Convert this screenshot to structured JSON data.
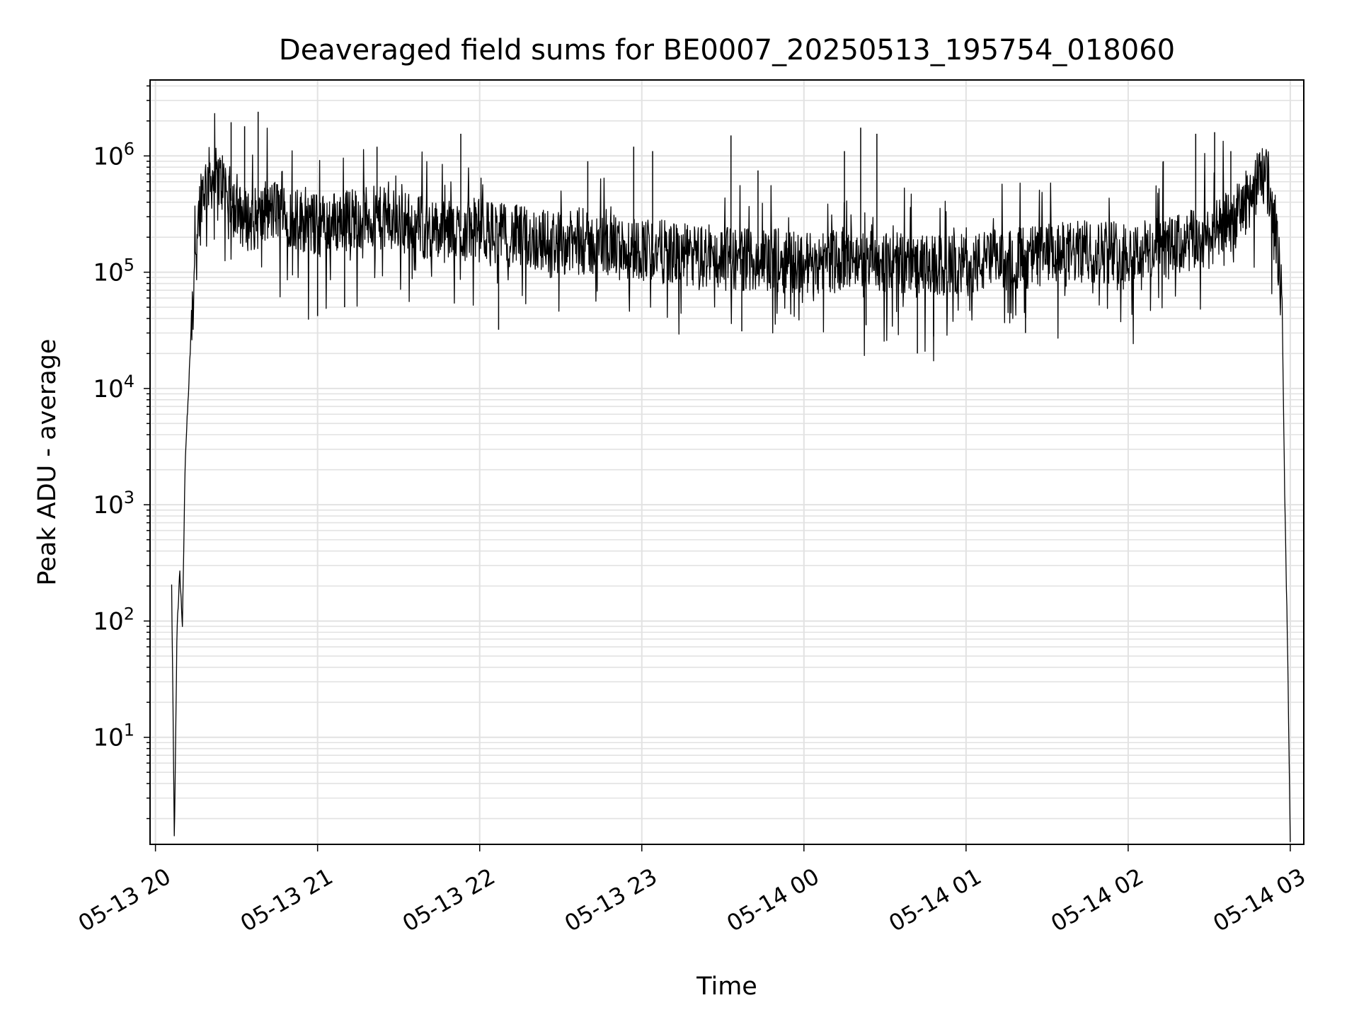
{
  "chart_data": {
    "type": "line",
    "title": "Deaveraged field sums for BE0007_20250513_195754_018060",
    "xlabel": "Time",
    "ylabel": "Peak ADU - average",
    "yscale": "log",
    "ylim": [
      1.2,
      4500000.0
    ],
    "xlim": [
      "2025-05-13 19:58",
      "2025-05-14 03:05"
    ],
    "grid": true,
    "legend": null,
    "line_color": "#000000",
    "x_ticks": [
      {
        "value": "2025-05-13 20:00",
        "label": "05-13 20"
      },
      {
        "value": "2025-05-13 21:00",
        "label": "05-13 21"
      },
      {
        "value": "2025-05-13 22:00",
        "label": "05-13 22"
      },
      {
        "value": "2025-05-13 23:00",
        "label": "05-13 23"
      },
      {
        "value": "2025-05-14 00:00",
        "label": "05-14 00"
      },
      {
        "value": "2025-05-14 01:00",
        "label": "05-14 01"
      },
      {
        "value": "2025-05-14 02:00",
        "label": "05-14 02"
      },
      {
        "value": "2025-05-14 03:00",
        "label": "05-14 03"
      }
    ],
    "y_ticks": [
      {
        "value": 10,
        "base": "10",
        "exp": "1"
      },
      {
        "value": 100,
        "base": "10",
        "exp": "2"
      },
      {
        "value": 1000,
        "base": "10",
        "exp": "3"
      },
      {
        "value": 10000,
        "base": "10",
        "exp": "4"
      },
      {
        "value": 100000,
        "base": "10",
        "exp": "5"
      },
      {
        "value": 1000000,
        "base": "10",
        "exp": "6"
      }
    ],
    "series": [
      {
        "x": [
          "2025-05-13 20:06",
          "2025-05-13 20:07",
          "2025-05-13 20:08",
          "2025-05-13 20:09",
          "2025-05-13 20:10",
          "2025-05-13 20:11",
          "2025-05-13 20:12",
          "2025-05-13 20:13",
          "2025-05-13 20:14",
          "2025-05-13 20:15",
          "2025-05-13 20:17",
          "2025-05-13 20:20",
          "2025-05-13 20:25",
          "2025-05-13 20:30",
          "2025-05-13 20:35",
          "2025-05-13 20:40",
          "2025-05-13 20:45",
          "2025-05-13 20:50",
          "2025-05-13 21:00",
          "2025-05-13 21:15",
          "2025-05-13 21:30",
          "2025-05-13 21:45",
          "2025-05-13 22:00",
          "2025-05-13 22:15",
          "2025-05-13 22:30",
          "2025-05-13 22:45",
          "2025-05-13 23:00",
          "2025-05-13 23:15",
          "2025-05-13 23:30",
          "2025-05-13 23:45",
          "2025-05-14 00:00",
          "2025-05-14 00:15",
          "2025-05-14 00:30",
          "2025-05-14 00:45",
          "2025-05-14 01:00",
          "2025-05-14 01:15",
          "2025-05-14 01:30",
          "2025-05-14 01:45",
          "2025-05-14 02:00",
          "2025-05-14 02:15",
          "2025-05-14 02:30",
          "2025-05-14 02:40",
          "2025-05-14 02:45",
          "2025-05-14 02:50",
          "2025-05-14 02:53",
          "2025-05-14 02:55",
          "2025-05-14 02:57",
          "2025-05-14 02:58",
          "2025-05-14 02:59",
          "2025-05-14 03:00"
        ],
        "y": [
          200,
          1.2,
          90,
          260,
          90,
          2500,
          7000,
          25000,
          80000,
          200000,
          500000,
          650000,
          600000,
          320000,
          280000,
          300000,
          350000,
          300000,
          250000,
          300000,
          280000,
          220000,
          230000,
          200000,
          180000,
          170000,
          160000,
          140000,
          130000,
          130000,
          120000,
          130000,
          125000,
          110000,
          115000,
          130000,
          140000,
          150000,
          150000,
          160000,
          200000,
          300000,
          450000,
          700000,
          500000,
          200000,
          50000,
          1000,
          60,
          1.2
        ]
      }
    ],
    "spikes": [
      {
        "x": "2025-05-13 20:28",
        "y": 1950000
      },
      {
        "x": "2025-05-13 20:38",
        "y": 2400000
      },
      {
        "x": "2025-05-13 20:33",
        "y": 1800000
      },
      {
        "x": "2025-05-13 21:22",
        "y": 1200000
      },
      {
        "x": "2025-05-13 21:53",
        "y": 1550000
      },
      {
        "x": "2025-05-13 22:40",
        "y": 900000
      },
      {
        "x": "2025-05-13 22:57",
        "y": 1200000
      },
      {
        "x": "2025-05-13 23:04",
        "y": 1100000
      },
      {
        "x": "2025-05-13 23:33",
        "y": 1500000
      },
      {
        "x": "2025-05-13 23:43",
        "y": 750000
      },
      {
        "x": "2025-05-14 00:15",
        "y": 1100000
      },
      {
        "x": "2025-05-14 00:21",
        "y": 1750000
      },
      {
        "x": "2025-05-14 00:27",
        "y": 1550000
      },
      {
        "x": "2025-05-14 02:13",
        "y": 900000
      },
      {
        "x": "2025-05-14 02:25",
        "y": 1550000
      },
      {
        "x": "2025-05-14 02:32",
        "y": 1600000
      },
      {
        "x": "2025-05-14 02:38",
        "y": 1100000
      }
    ],
    "dips": [
      {
        "x": "2025-05-13 21:00",
        "y": 42000
      },
      {
        "x": "2025-05-13 21:10",
        "y": 50000
      },
      {
        "x": "2025-05-13 22:07",
        "y": 32000
      },
      {
        "x": "2025-05-13 23:37",
        "y": 31000
      },
      {
        "x": "2025-05-14 00:23",
        "y": 35000
      },
      {
        "x": "2025-05-14 00:42",
        "y": 20000
      },
      {
        "x": "2025-05-14 00:48",
        "y": 28000
      },
      {
        "x": "2025-05-14 01:22",
        "y": 30000
      }
    ]
  }
}
